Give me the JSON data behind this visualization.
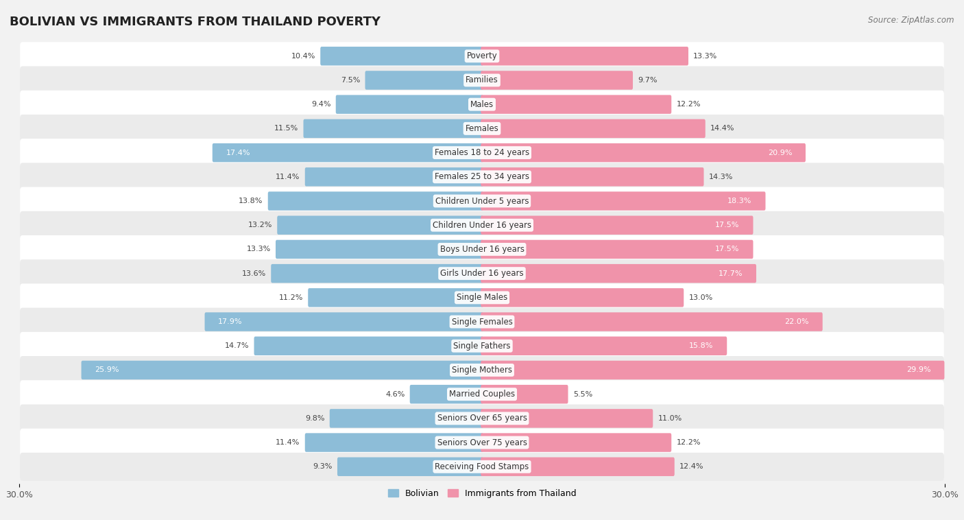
{
  "title": "BOLIVIAN VS IMMIGRANTS FROM THAILAND POVERTY",
  "source": "Source: ZipAtlas.com",
  "categories": [
    "Poverty",
    "Families",
    "Males",
    "Females",
    "Females 18 to 24 years",
    "Females 25 to 34 years",
    "Children Under 5 years",
    "Children Under 16 years",
    "Boys Under 16 years",
    "Girls Under 16 years",
    "Single Males",
    "Single Females",
    "Single Fathers",
    "Single Mothers",
    "Married Couples",
    "Seniors Over 65 years",
    "Seniors Over 75 years",
    "Receiving Food Stamps"
  ],
  "bolivian": [
    10.4,
    7.5,
    9.4,
    11.5,
    17.4,
    11.4,
    13.8,
    13.2,
    13.3,
    13.6,
    11.2,
    17.9,
    14.7,
    25.9,
    4.6,
    9.8,
    11.4,
    9.3
  ],
  "thailand": [
    13.3,
    9.7,
    12.2,
    14.4,
    20.9,
    14.3,
    18.3,
    17.5,
    17.5,
    17.7,
    13.0,
    22.0,
    15.8,
    29.9,
    5.5,
    11.0,
    12.2,
    12.4
  ],
  "bolivian_color": "#8dbdd8",
  "thailand_color": "#f093aa",
  "row_color_even": "#f2f2f2",
  "row_color_odd": "#e8e8e8",
  "background_color": "#f2f2f2",
  "axis_max": 30.0,
  "legend_bolivian": "Bolivian",
  "legend_thailand": "Immigrants from Thailand",
  "title_fontsize": 13,
  "label_fontsize": 8.5,
  "value_fontsize": 8.0,
  "value_threshold": 15.0
}
